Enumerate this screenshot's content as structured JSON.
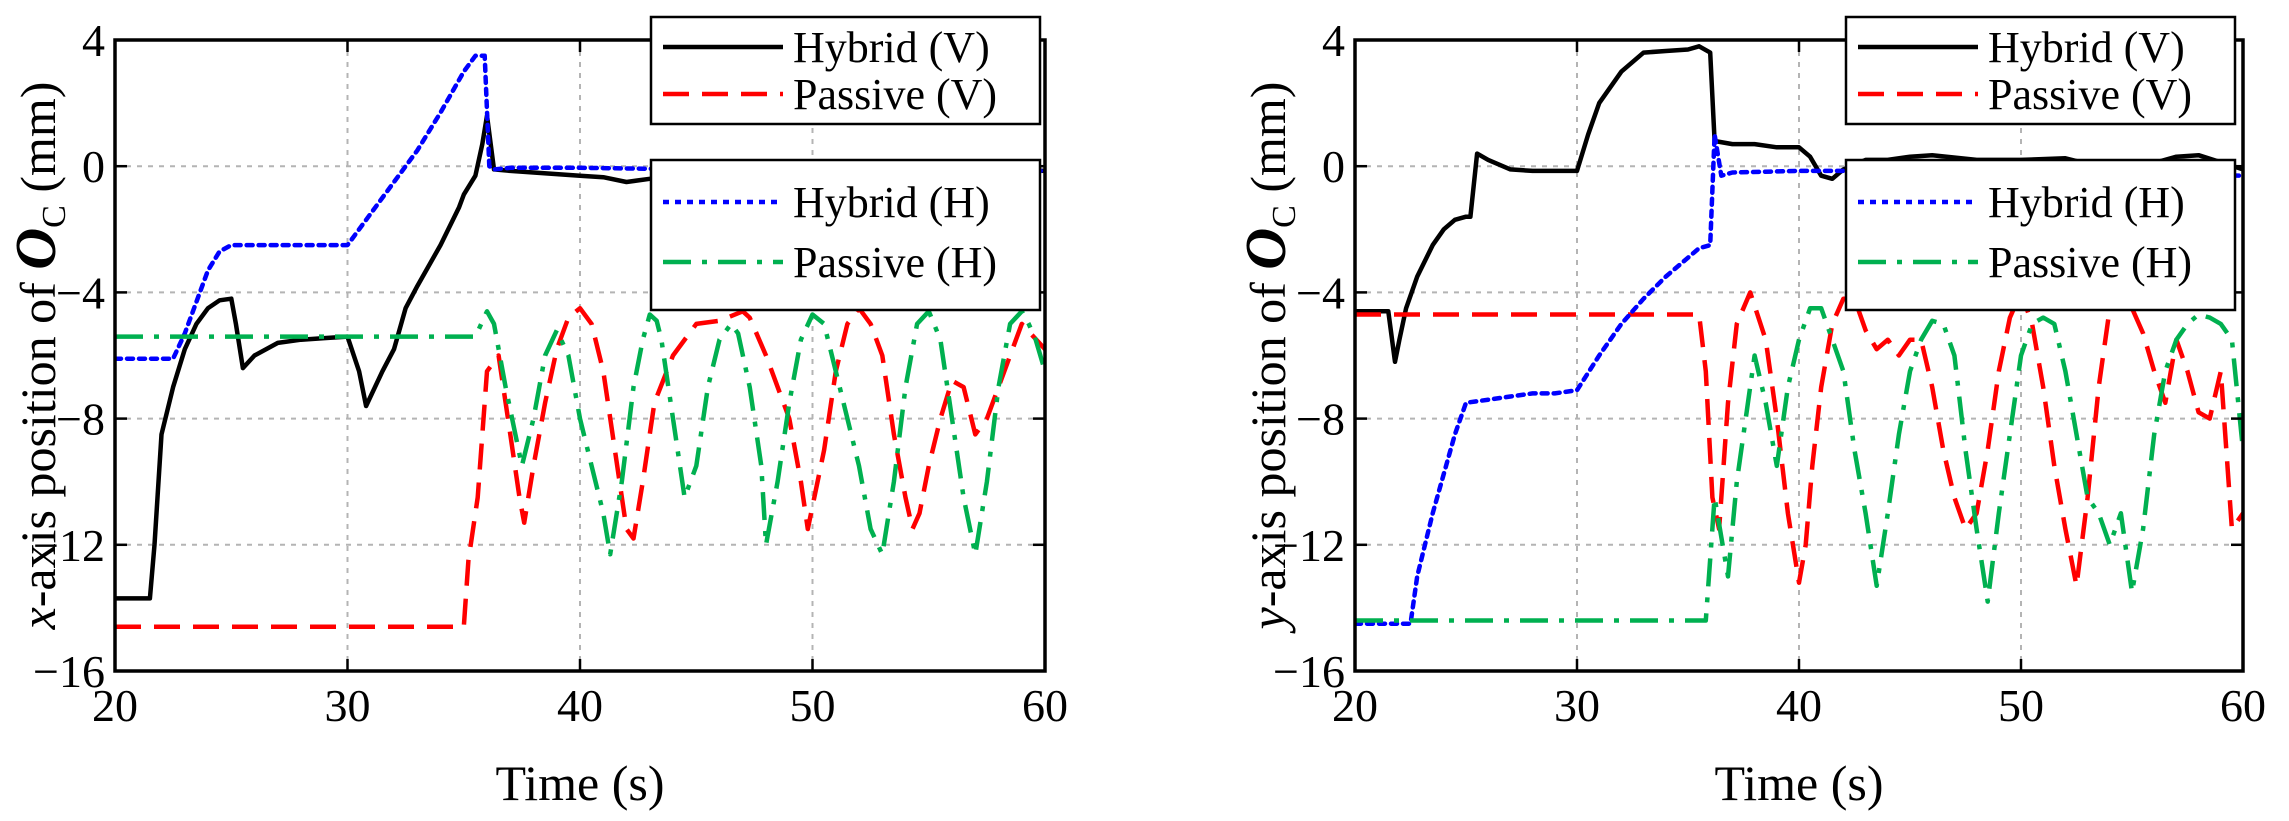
{
  "chart_data": [
    {
      "type": "line",
      "title": "",
      "xlabel": "Time (s)",
      "ylabel_prefix": "x",
      "ylabel_mid": "-axis position of ",
      "ylabel_symbol": "O",
      "ylabel_sub": "C",
      "ylabel_suffix": " (mm)",
      "xlim": [
        20,
        60
      ],
      "ylim": [
        -16,
        4
      ],
      "xticks": [
        20,
        30,
        40,
        50,
        60
      ],
      "yticks": [
        4,
        0,
        -4,
        -8,
        -12,
        -16
      ],
      "ytick_labels": [
        "4",
        "0",
        "−4",
        "−8",
        "−12",
        "−16"
      ],
      "grid": true,
      "legends": [
        {
          "position": "top-right",
          "entries": [
            "Hybrid (V)",
            "Passive (V)"
          ]
        },
        {
          "position": "middle-right",
          "entries": [
            "Hybrid (H)",
            "Passive (H)"
          ]
        }
      ],
      "series": [
        {
          "name": "Hybrid (V)",
          "color": "#000000",
          "style": "solid",
          "x": [
            20,
            21.5,
            21.7,
            22,
            22.5,
            23,
            23.5,
            24,
            24.5,
            25,
            25.2,
            25.5,
            26,
            27,
            28,
            29,
            30,
            30.5,
            30.8,
            31.5,
            32,
            32.5,
            33,
            34,
            34.8,
            35,
            35.5,
            35.8,
            36.0,
            36.3,
            37,
            38,
            39,
            40,
            41,
            42,
            43,
            44,
            45,
            46,
            47,
            48,
            50,
            52,
            53,
            54,
            55,
            56,
            58,
            60
          ],
          "y": [
            -13.7,
            -13.7,
            -12,
            -8.5,
            -7,
            -5.8,
            -5,
            -4.5,
            -4.25,
            -4.2,
            -5,
            -6.4,
            -6.0,
            -5.6,
            -5.5,
            -5.45,
            -5.4,
            -6.5,
            -7.6,
            -6.5,
            -5.8,
            -4.5,
            -3.8,
            -2.5,
            -1.3,
            -0.9,
            -0.3,
            0.7,
            1.6,
            -0.1,
            -0.15,
            -0.2,
            -0.25,
            -0.3,
            -0.35,
            -0.5,
            -0.4,
            -0.3,
            -0.25,
            -0.3,
            -0.2,
            -0.15,
            -0.2,
            -0.3,
            -0.25,
            -0.3,
            -0.45,
            -0.2,
            -0.1,
            -0.15
          ]
        },
        {
          "name": "Passive (V)",
          "color": "#ff0000",
          "style": "dash",
          "x": [
            20,
            35,
            35.2,
            35.6,
            36,
            36.5,
            37,
            37.4,
            37.6,
            38,
            38.5,
            39,
            39.5,
            40,
            40.5,
            41,
            41.5,
            42,
            42.3,
            42.7,
            43.2,
            44,
            45,
            46,
            47,
            47.3,
            48,
            49,
            49.5,
            49.8,
            50.5,
            51,
            51.5,
            52,
            52.5,
            53,
            53.5,
            54,
            54.3,
            54.6,
            55,
            55.5,
            56,
            56.5,
            57,
            57.5,
            58,
            59,
            60
          ],
          "y": [
            -14.6,
            -14.6,
            -12.5,
            -10.5,
            -6.5,
            -6.0,
            -8.5,
            -10.5,
            -11.3,
            -9.5,
            -7.5,
            -5.8,
            -4.8,
            -4.5,
            -5.0,
            -6.5,
            -9,
            -11.5,
            -11.8,
            -10,
            -7.5,
            -6.0,
            -5.0,
            -4.9,
            -4.6,
            -4.8,
            -6.0,
            -8.0,
            -10.0,
            -11.5,
            -9.0,
            -6.5,
            -5.0,
            -4.5,
            -5.0,
            -6.0,
            -8.5,
            -10.5,
            -11.5,
            -11.0,
            -9.5,
            -8.0,
            -6.8,
            -7.0,
            -8.5,
            -8.0,
            -7.0,
            -5.0,
            -5.8
          ]
        },
        {
          "name": "Hybrid (H)",
          "color": "#0000ff",
          "style": "dot",
          "x": [
            20,
            22.5,
            23,
            24,
            24.5,
            25,
            27,
            29,
            30,
            31,
            32,
            33,
            34,
            35,
            35.5,
            35.9,
            36.1,
            36.3,
            37,
            40,
            45,
            50,
            55,
            60
          ],
          "y": [
            -6.1,
            -6.1,
            -5.3,
            -3.3,
            -2.7,
            -2.5,
            -2.5,
            -2.5,
            -2.5,
            -1.5,
            -0.5,
            0.5,
            1.7,
            3.0,
            3.5,
            3.5,
            0.0,
            -0.1,
            -0.05,
            -0.05,
            -0.1,
            -0.05,
            -0.1,
            -0.15
          ]
        },
        {
          "name": "Passive (H)",
          "color": "#00b050",
          "style": "dashdot",
          "x": [
            20,
            35.5,
            36,
            36.3,
            36.8,
            37.5,
            38,
            38.5,
            39,
            39.5,
            40,
            40.5,
            41,
            41.3,
            41.8,
            42.3,
            42.7,
            43,
            43.3,
            43.5,
            44,
            44.5,
            45,
            45.5,
            46,
            46.5,
            46.8,
            47.3,
            47.8,
            48,
            48.5,
            49,
            49.5,
            50,
            50.5,
            51,
            52,
            52.5,
            53,
            53.5,
            54,
            54.5,
            55,
            55.5,
            56,
            56.5,
            57,
            57.5,
            58,
            58.5,
            59,
            59.3,
            59.6,
            60
          ],
          "y": [
            -5.4,
            -5.4,
            -4.6,
            -5.0,
            -7.0,
            -9.5,
            -8.0,
            -6.0,
            -5.2,
            -6.0,
            -8.0,
            -9.5,
            -11.0,
            -12.3,
            -10.0,
            -7.0,
            -5.5,
            -4.7,
            -4.9,
            -5.5,
            -8.0,
            -10.5,
            -9.5,
            -7.0,
            -5.5,
            -5.0,
            -5.3,
            -7.0,
            -9.5,
            -12.0,
            -10.0,
            -7.5,
            -5.5,
            -4.7,
            -5.0,
            -6.5,
            -9.5,
            -11.5,
            -12.3,
            -10.0,
            -7.0,
            -5.0,
            -4.6,
            -5.5,
            -8.0,
            -10.5,
            -12.3,
            -10.0,
            -7.0,
            -5.0,
            -4.6,
            -5.0,
            -5.5,
            -6.5
          ]
        }
      ]
    },
    {
      "type": "line",
      "title": "",
      "xlabel": "Time (s)",
      "ylabel_prefix": "y",
      "ylabel_mid": "-axis position of ",
      "ylabel_symbol": "O",
      "ylabel_sub": "C",
      "ylabel_suffix": " (mm)",
      "xlim": [
        20,
        60
      ],
      "ylim": [
        -16,
        4
      ],
      "xticks": [
        20,
        30,
        40,
        50,
        60
      ],
      "yticks": [
        4,
        0,
        -4,
        -8,
        -12,
        -16
      ],
      "ytick_labels": [
        "4",
        "0",
        "−4",
        "−8",
        "−12",
        "−16"
      ],
      "grid": true,
      "legends": [
        {
          "position": "top-right",
          "entries": [
            "Hybrid (V)",
            "Passive (V)"
          ]
        },
        {
          "position": "middle-right",
          "entries": [
            "Hybrid (H)",
            "Passive (H)"
          ]
        }
      ],
      "series": [
        {
          "name": "Hybrid (V)",
          "color": "#000000",
          "style": "solid",
          "x": [
            20,
            21.5,
            21.8,
            22,
            22.3,
            22.8,
            23.5,
            24,
            24.5,
            25,
            25.2,
            25.5,
            26,
            27,
            28,
            29,
            30,
            30.5,
            31,
            32,
            33,
            34,
            35,
            35.5,
            36,
            36.2,
            37,
            38,
            39,
            40,
            40.5,
            41,
            41.5,
            42,
            43,
            44,
            45,
            46,
            48,
            50,
            52,
            54,
            55,
            56,
            57,
            58,
            60
          ],
          "y": [
            -4.6,
            -4.6,
            -6.2,
            -5.5,
            -4.5,
            -3.5,
            -2.5,
            -2.0,
            -1.7,
            -1.6,
            -1.6,
            0.4,
            0.2,
            -0.1,
            -0.15,
            -0.15,
            -0.15,
            1.0,
            2.0,
            3.0,
            3.6,
            3.65,
            3.7,
            3.8,
            3.6,
            0.8,
            0.7,
            0.7,
            0.6,
            0.6,
            0.3,
            -0.3,
            -0.4,
            -0.1,
            0.2,
            0.2,
            0.3,
            0.35,
            0.2,
            0.2,
            0.25,
            -0.1,
            -0.2,
            0.1,
            0.3,
            0.35,
            -0.1
          ]
        },
        {
          "name": "Passive (V)",
          "color": "#ff0000",
          "style": "dash",
          "x": [
            20,
            35.5,
            35.8,
            36.1,
            36.4,
            36.8,
            37.2,
            37.8,
            38.5,
            39,
            39.5,
            40,
            40.3,
            40.6,
            41,
            41.5,
            42,
            42.5,
            43,
            43.5,
            44,
            44.5,
            45,
            45.5,
            46,
            46.5,
            47,
            47.5,
            48,
            48.5,
            49,
            49.5,
            50,
            50.5,
            51,
            51.5,
            52,
            52.5,
            53,
            53.5,
            54,
            54.5,
            55,
            55.5,
            56,
            56.5,
            57,
            57.5,
            58,
            58.5,
            59,
            59.5,
            60
          ],
          "y": [
            -4.7,
            -4.7,
            -6.5,
            -10.5,
            -11.5,
            -7.5,
            -5.0,
            -4.0,
            -5.5,
            -8.0,
            -11.0,
            -13.2,
            -12.0,
            -9.5,
            -7.0,
            -5.0,
            -4.2,
            -4.2,
            -5.2,
            -5.8,
            -5.5,
            -6.0,
            -5.5,
            -5.5,
            -7.0,
            -9.0,
            -10.5,
            -11.5,
            -11.0,
            -9.0,
            -6.5,
            -4.8,
            -4.0,
            -5.0,
            -7.0,
            -9.5,
            -11.5,
            -13.3,
            -10.5,
            -7.0,
            -4.5,
            -4.0,
            -4.5,
            -5.3,
            -6.5,
            -7.5,
            -5.5,
            -6.5,
            -7.8,
            -8.0,
            -6.5,
            -11.5,
            -11.0
          ]
        },
        {
          "name": "Hybrid (H)",
          "color": "#0000ff",
          "style": "dot",
          "x": [
            20,
            22.5,
            22.8,
            23.5,
            24.5,
            25,
            26,
            27,
            28,
            29,
            30,
            31,
            32,
            33,
            34,
            35,
            35.5,
            36,
            36.2,
            36.5,
            37,
            40,
            45,
            50,
            55,
            60
          ],
          "y": [
            -14.5,
            -14.5,
            -13.0,
            -11.0,
            -8.5,
            -7.5,
            -7.4,
            -7.3,
            -7.2,
            -7.2,
            -7.1,
            -6.0,
            -5.0,
            -4.2,
            -3.5,
            -2.9,
            -2.6,
            -2.5,
            1.0,
            -0.3,
            -0.2,
            -0.15,
            -0.15,
            -0.2,
            -0.25,
            -0.3
          ]
        },
        {
          "name": "Passive (H)",
          "color": "#00b050",
          "style": "dashdot",
          "x": [
            20,
            35.8,
            36.2,
            36.8,
            37.2,
            37.5,
            38,
            38.5,
            39,
            39.5,
            40,
            40.5,
            41,
            41.5,
            42,
            42.5,
            43,
            43.5,
            44,
            44.5,
            45,
            45.5,
            46,
            46.5,
            47,
            47.5,
            48,
            48.5,
            49,
            49.5,
            50,
            50.5,
            51,
            51.5,
            52,
            52.5,
            53,
            53.5,
            54,
            54.5,
            55,
            55.5,
            56,
            56.5,
            57,
            57.5,
            58,
            58.5,
            59,
            59.5,
            60
          ],
          "y": [
            -14.4,
            -14.4,
            -10.5,
            -13.0,
            -10.0,
            -8.5,
            -6.0,
            -7.5,
            -9.5,
            -7.0,
            -5.5,
            -4.5,
            -4.5,
            -5.5,
            -6.5,
            -9.0,
            -11.0,
            -13.3,
            -11.0,
            -8.5,
            -6.5,
            -5.5,
            -4.9,
            -5.0,
            -6.0,
            -9.0,
            -11.5,
            -13.8,
            -11.0,
            -8.5,
            -6.0,
            -5.0,
            -4.8,
            -5.0,
            -6.5,
            -8.5,
            -10.5,
            -11.0,
            -12.0,
            -11.0,
            -13.5,
            -11.5,
            -8.5,
            -6.5,
            -5.5,
            -5.0,
            -4.7,
            -4.8,
            -5.0,
            -5.5,
            -9.0
          ]
        }
      ]
    }
  ]
}
